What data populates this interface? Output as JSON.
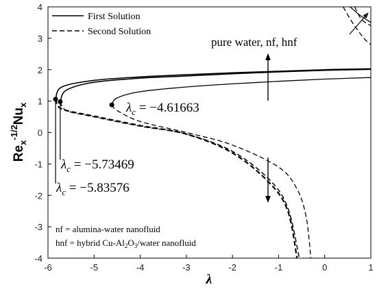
{
  "chart_data": {
    "type": "line",
    "xlabel": "λ",
    "ylabel": "Re_x^-1/2 Nu_x",
    "ylabel_parts": {
      "base1": "Re",
      "sub1": "x",
      "sup1": "-1/2",
      "base2": "Nu",
      "sub2": "x"
    },
    "xlim": [
      -6,
      1
    ],
    "ylim": [
      -4,
      4
    ],
    "x_ticks": [
      -6,
      -5,
      -4,
      -3,
      -2,
      -1,
      0,
      1
    ],
    "y_ticks": [
      -4,
      -3,
      -2,
      -1,
      0,
      1,
      2,
      3,
      4
    ],
    "grid": false,
    "legend": {
      "position": "top-left",
      "entries": [
        {
          "label": "First Solution",
          "style": "solid"
        },
        {
          "label": "Second Solution",
          "style": "dashed"
        }
      ]
    },
    "series": [
      {
        "style": "solid",
        "width": 1.3,
        "fluid": "pure water",
        "points": [
          [
            -4.61663,
            0.88
          ],
          [
            -4.5,
            1.1
          ],
          [
            -4.0,
            1.3
          ],
          [
            -3.0,
            1.45
          ],
          [
            -2.0,
            1.55
          ],
          [
            -1.0,
            1.63
          ],
          [
            0.0,
            1.7
          ],
          [
            1.0,
            1.75
          ]
        ]
      },
      {
        "style": "solid",
        "width": 1.6,
        "fluid": "nf",
        "points": [
          [
            -5.73469,
            0.98
          ],
          [
            -5.6,
            1.35
          ],
          [
            -5.0,
            1.6
          ],
          [
            -4.0,
            1.73
          ],
          [
            -3.0,
            1.8
          ],
          [
            -2.0,
            1.87
          ],
          [
            -1.0,
            1.93
          ],
          [
            0.0,
            1.98
          ],
          [
            1.0,
            2.01
          ]
        ]
      },
      {
        "style": "solid",
        "width": 1.6,
        "fluid": "hnf",
        "points": [
          [
            -5.83576,
            1.06
          ],
          [
            -5.7,
            1.45
          ],
          [
            -5.0,
            1.66
          ],
          [
            -4.0,
            1.77
          ],
          [
            -3.0,
            1.84
          ],
          [
            -2.0,
            1.9
          ],
          [
            -1.0,
            1.95
          ],
          [
            0.0,
            2.0
          ],
          [
            1.0,
            2.03
          ]
        ]
      },
      {
        "style": "dashed",
        "width": 1.3,
        "fluid": "pure water",
        "points": [
          [
            -4.61663,
            0.88
          ],
          [
            -4.5,
            0.7
          ],
          [
            -4.0,
            0.35
          ],
          [
            -3.0,
            0.0
          ],
          [
            -2.0,
            -0.4
          ],
          [
            -1.0,
            -1.1
          ],
          [
            -0.6,
            -1.8
          ],
          [
            -0.4,
            -2.7
          ],
          [
            -0.3,
            -4.0
          ]
        ]
      },
      {
        "style": "dashed",
        "width": 1.5,
        "fluid": "nf",
        "points": [
          [
            -5.73469,
            0.98
          ],
          [
            -5.6,
            0.7
          ],
          [
            -5.0,
            0.5
          ],
          [
            -4.0,
            0.2
          ],
          [
            -3.0,
            -0.05
          ],
          [
            -2.0,
            -0.6
          ],
          [
            -1.2,
            -1.5
          ],
          [
            -0.8,
            -2.4
          ],
          [
            -0.55,
            -4.0
          ]
        ]
      },
      {
        "style": "dashed",
        "width": 2.2,
        "fluid": "hnf",
        "points": [
          [
            -5.83576,
            1.06
          ],
          [
            -5.7,
            0.75
          ],
          [
            -5.0,
            0.52
          ],
          [
            -4.0,
            0.22
          ],
          [
            -3.0,
            -0.05
          ],
          [
            -2.0,
            -0.65
          ],
          [
            -1.2,
            -1.6
          ],
          [
            -0.8,
            -2.5
          ],
          [
            -0.6,
            -4.0
          ]
        ]
      },
      {
        "style": "solid",
        "width": 1.3,
        "fluid": "upper-right branch",
        "points": [
          [
            0.55,
            4.0
          ],
          [
            0.75,
            3.75
          ],
          [
            1.0,
            3.5
          ]
        ]
      },
      {
        "style": "dashed",
        "width": 1.3,
        "fluid": "upper-right branch",
        "points": [
          [
            0.4,
            4.0
          ],
          [
            0.6,
            3.5
          ],
          [
            0.85,
            3.0
          ],
          [
            1.0,
            2.8
          ]
        ]
      },
      {
        "style": "dashed",
        "width": 1.3,
        "fluid": "upper-right branch",
        "points": [
          [
            0.65,
            4.0
          ],
          [
            0.8,
            3.6
          ],
          [
            1.0,
            3.4
          ]
        ]
      }
    ],
    "critical_points": [
      {
        "x": -4.61663,
        "y": 0.88,
        "label": "λc = −4.61663"
      },
      {
        "x": -5.73469,
        "y": 0.98,
        "label": "λc = −5.73469"
      },
      {
        "x": -5.83576,
        "y": 1.06,
        "label": "λc = −5.83576"
      }
    ],
    "critical_label_parts": [
      {
        "sym": "λ",
        "sub": "c",
        "val": " = −4.61663"
      },
      {
        "sym": "λ",
        "sub": "c",
        "val": " = −5.73469"
      },
      {
        "sym": "λ",
        "sub": "c",
        "val": " = −5.83576"
      }
    ],
    "annotations": {
      "arrow_label": "pure water, nf, hnf",
      "notes": [
        {
          "text": "nf = alumina-water nanofluid"
        },
        {
          "prefix": "hnf = hybrid Cu-Al",
          "sub1": "2",
          "mid": "O",
          "sub2": "3",
          "suffix": "/water nanofluid"
        }
      ]
    }
  }
}
